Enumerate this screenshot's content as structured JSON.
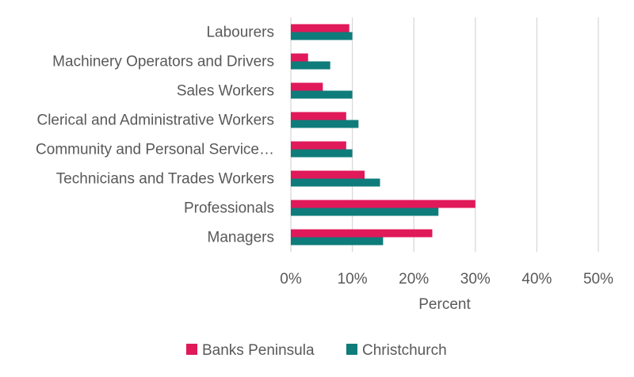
{
  "chart_data": {
    "type": "bar",
    "orientation": "horizontal",
    "categories": [
      "Labourers",
      "Machinery Operators and Drivers",
      "Sales Workers",
      "Clerical and Administrative Workers",
      "Community and Personal Service…",
      "Technicians and Trades Workers",
      "Professionals",
      "Managers"
    ],
    "series": [
      {
        "name": "Banks Peninsula",
        "color": "#E0195A",
        "values": [
          9.5,
          2.8,
          5.2,
          9.0,
          9.0,
          12.0,
          30.0,
          23.0
        ]
      },
      {
        "name": "Christchurch",
        "color": "#0E7C7B",
        "values": [
          10.0,
          6.4,
          10.0,
          11.0,
          10.0,
          14.5,
          24.0,
          15.0
        ]
      }
    ],
    "x_ticks": [
      "0%",
      "10%",
      "20%",
      "30%",
      "40%",
      "50%"
    ],
    "xlim": [
      0,
      50
    ],
    "xlabel": "Percent",
    "ylabel": "",
    "title": "",
    "grid": "vertical",
    "legend_position": "bottom"
  }
}
